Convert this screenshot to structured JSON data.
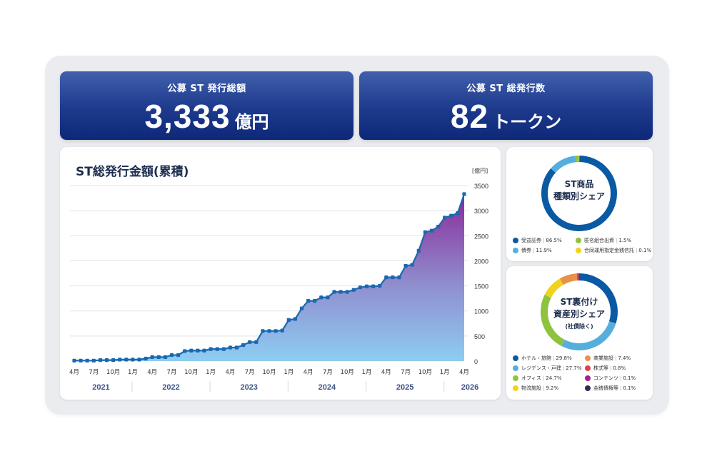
{
  "kpis": [
    {
      "label": "公募 ST 発行総額",
      "value": "3,333",
      "unit": "億円"
    },
    {
      "label": "公募 ST 総発行数",
      "value": "82",
      "unit": "トークン"
    }
  ],
  "main_chart": {
    "title": "ST総発行金額(累積)",
    "unit_label": "[億円]"
  },
  "pie1": {
    "title_line1": "ST商品",
    "title_line2": "種類別シェア",
    "legend": [
      {
        "label": "受益証券",
        "value": "86.5%",
        "color": "#0a5aa3"
      },
      {
        "label": "匿名組合出資",
        "value": "1.5%",
        "color": "#8fc23f"
      },
      {
        "label": "債券",
        "value": "11.9%",
        "color": "#55aedb"
      },
      {
        "label": "合同運用指定金銭信託",
        "value": "0.1%",
        "color": "#f2d31b"
      }
    ]
  },
  "pie2": {
    "title_line1": "ST裏付け",
    "title_line2": "資産別シェア",
    "title_line3": "(社債除く)",
    "legend": [
      {
        "label": "ホテル・旅館",
        "value": "29.8%",
        "color": "#0a5aa3"
      },
      {
        "label": "商業施設",
        "value": "7.4%",
        "color": "#e8914a"
      },
      {
        "label": "レジデンス・戸建",
        "value": "27.7%",
        "color": "#55aedb"
      },
      {
        "label": "株式等",
        "value": "0.8%",
        "color": "#d9434a"
      },
      {
        "label": "オフィス",
        "value": "24.7%",
        "color": "#8fc23f"
      },
      {
        "label": "コンテンツ",
        "value": "0.1%",
        "color": "#a0209c"
      },
      {
        "label": "物流施設",
        "value": "9.2%",
        "color": "#f2d31b"
      },
      {
        "label": "金銭債権等",
        "value": "0.1%",
        "color": "#2b2f55"
      }
    ]
  },
  "chart_data": [
    {
      "type": "area",
      "title": "ST総発行金額(累積)",
      "xlabel": "",
      "ylabel": "[億円]",
      "ylim": [
        0,
        3500
      ],
      "yticks": [
        0,
        500,
        1000,
        1500,
        2000,
        2500,
        3000,
        3500
      ],
      "grid": true,
      "x_tick_labels": [
        "4月",
        "7月",
        "10月",
        "1月",
        "4月",
        "7月",
        "10月",
        "1月",
        "4月",
        "7月",
        "10月",
        "1月",
        "4月",
        "7月",
        "10月",
        "1月",
        "4月",
        "7月",
        "10月",
        "1月",
        "4月"
      ],
      "year_labels": [
        "2021",
        "2022",
        "2023",
        "2024",
        "2025",
        "2026"
      ],
      "x": [
        "2021-04",
        "2021-05",
        "2021-06",
        "2021-07",
        "2021-08",
        "2021-09",
        "2021-10",
        "2021-11",
        "2021-12",
        "2022-01",
        "2022-02",
        "2022-03",
        "2022-04",
        "2022-05",
        "2022-06",
        "2022-07",
        "2022-08",
        "2022-09",
        "2022-10",
        "2022-11",
        "2022-12",
        "2023-01",
        "2023-02",
        "2023-03",
        "2023-04",
        "2023-05",
        "2023-06",
        "2023-07",
        "2023-08",
        "2023-09",
        "2023-10",
        "2023-11",
        "2023-12",
        "2024-01",
        "2024-02",
        "2024-03",
        "2024-04",
        "2024-05",
        "2024-06",
        "2024-07",
        "2024-08",
        "2024-09",
        "2024-10",
        "2024-11",
        "2024-12",
        "2025-01",
        "2025-02",
        "2025-03",
        "2025-04",
        "2025-05",
        "2025-06",
        "2025-07",
        "2025-08",
        "2025-09",
        "2025-10",
        "2025-11",
        "2025-12",
        "2026-01",
        "2026-02",
        "2026-03",
        "2026-04"
      ],
      "values": [
        10,
        10,
        10,
        10,
        20,
        20,
        20,
        30,
        30,
        30,
        30,
        50,
        80,
        80,
        80,
        120,
        120,
        200,
        210,
        210,
        210,
        240,
        240,
        240,
        270,
        270,
        320,
        380,
        380,
        600,
        600,
        600,
        610,
        820,
        840,
        1050,
        1200,
        1200,
        1270,
        1270,
        1380,
        1380,
        1380,
        1420,
        1470,
        1490,
        1490,
        1500,
        1670,
        1670,
        1670,
        1900,
        1920,
        2200,
        2570,
        2600,
        2680,
        2860,
        2900,
        2950,
        3330
      ],
      "series_colors": {
        "line": "#1a68b0",
        "area_top": "#8a2a9a",
        "area_bottom": "#8ecdf2"
      }
    },
    {
      "type": "pie",
      "title": "ST商品 種類別シェア",
      "categories": [
        "受益証券",
        "債券",
        "匿名組合出資",
        "合同運用指定金銭信託"
      ],
      "values": [
        86.5,
        11.9,
        1.5,
        0.1
      ],
      "donut": true
    },
    {
      "type": "pie",
      "title": "ST裏付け 資産別シェア(社債除く)",
      "categories": [
        "ホテル・旅館",
        "レジデンス・戸建",
        "オフィス",
        "物流施設",
        "商業施設",
        "株式等",
        "コンテンツ",
        "金銭債権等"
      ],
      "values": [
        29.8,
        27.7,
        24.7,
        9.2,
        7.4,
        0.8,
        0.1,
        0.1
      ],
      "donut": true
    }
  ]
}
